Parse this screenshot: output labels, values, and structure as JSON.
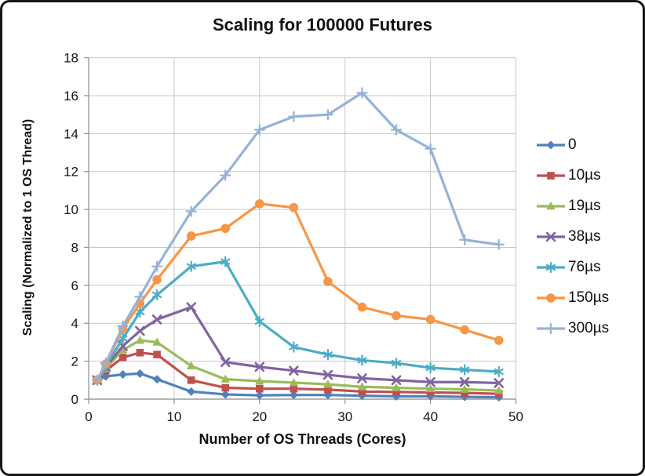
{
  "chart_data": {
    "type": "line",
    "title": "Scaling for 100000 Futures",
    "xlabel": "Number of OS Threads (Cores)",
    "ylabel": "Scaling (Normalized to 1 OS Thread)",
    "xlim": [
      0,
      50
    ],
    "ylim": [
      0,
      18
    ],
    "xticks": [
      0,
      10,
      20,
      30,
      40,
      50
    ],
    "yticks": [
      0,
      2,
      4,
      6,
      8,
      10,
      12,
      14,
      16,
      18
    ],
    "grid": true,
    "legend_position": "right",
    "x": [
      1,
      2,
      4,
      6,
      8,
      12,
      16,
      20,
      24,
      28,
      32,
      36,
      40,
      44,
      48
    ],
    "series": [
      {
        "name": "0",
        "marker": "diamond",
        "color": "#4F81BD",
        "values": [
          1.0,
          1.2,
          1.3,
          1.35,
          1.05,
          0.4,
          0.25,
          0.2,
          0.22,
          0.22,
          0.18,
          0.15,
          0.15,
          0.12,
          0.1
        ]
      },
      {
        "name": "10µs",
        "marker": "square",
        "color": "#C0504D",
        "values": [
          1.0,
          1.5,
          2.2,
          2.45,
          2.35,
          1.0,
          0.6,
          0.55,
          0.55,
          0.5,
          0.4,
          0.38,
          0.35,
          0.33,
          0.28
        ]
      },
      {
        "name": "19µs",
        "marker": "triangle",
        "color": "#9BBB59",
        "values": [
          1.0,
          1.6,
          2.6,
          3.1,
          3.0,
          1.75,
          1.05,
          0.95,
          0.87,
          0.78,
          0.65,
          0.6,
          0.55,
          0.52,
          0.45
        ]
      },
      {
        "name": "38µs",
        "marker": "x",
        "color": "#8064A2",
        "values": [
          1.0,
          1.7,
          2.8,
          3.6,
          4.2,
          4.85,
          1.95,
          1.7,
          1.5,
          1.28,
          1.1,
          1.0,
          0.9,
          0.9,
          0.85
        ]
      },
      {
        "name": "76µs",
        "marker": "asterisk",
        "color": "#4BACC6",
        "values": [
          1.0,
          1.75,
          3.2,
          4.6,
          5.5,
          7.0,
          7.25,
          4.1,
          2.75,
          2.35,
          2.05,
          1.9,
          1.65,
          1.55,
          1.45
        ]
      },
      {
        "name": "150µs",
        "marker": "circle",
        "color": "#F79646",
        "values": [
          1.0,
          1.85,
          3.7,
          5.05,
          6.3,
          8.6,
          9.0,
          10.3,
          10.1,
          6.2,
          4.85,
          4.4,
          4.2,
          3.65,
          3.1
        ]
      },
      {
        "name": "300µs",
        "marker": "plus",
        "color": "#95B3D7",
        "values": [
          1.0,
          1.9,
          3.85,
          5.4,
          7.0,
          9.9,
          11.8,
          14.2,
          14.9,
          15.0,
          16.15,
          14.2,
          13.2,
          8.4,
          8.15
        ]
      }
    ],
    "colors": {
      "gridline": "#C7C7C7",
      "axis": "#9C9C9C",
      "text": "#161616"
    }
  }
}
